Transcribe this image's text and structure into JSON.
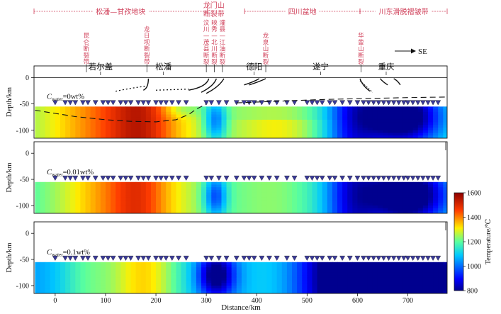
{
  "provinces": [
    {
      "label": "松潘—甘孜地块",
      "x0": -42,
      "x1": 302
    },
    {
      "label": "四川盆地",
      "x0": 376,
      "x1": 605
    },
    {
      "label": "川东滑脱褶皱带",
      "x0": 605,
      "x1": 778
    }
  ],
  "longmen_label": [
    "龙门山",
    "断裂带"
  ],
  "faults": [
    {
      "name": "昆仑断裂带",
      "x": 62
    },
    {
      "name": "龙日坝断裂带",
      "x": 182
    },
    {
      "name": "汶川—茂县断裂",
      "x": 300
    },
    {
      "name": "映秀—北川断裂",
      "x": 316
    },
    {
      "name": "灌县—江油断裂",
      "x": 332
    },
    {
      "name": "龙泉山断裂",
      "x": 418
    },
    {
      "name": "华蓥山断裂",
      "x": 607
    }
  ],
  "cities": [
    {
      "name": "若尔盖",
      "x": 90
    },
    {
      "name": "松潘",
      "x": 215
    },
    {
      "name": "德阳",
      "x": 395
    },
    {
      "name": "遂宁",
      "x": 527
    },
    {
      "name": "重庆",
      "x": 657
    }
  ],
  "direction_label": "SE",
  "x_axis": {
    "label": "Distance/km",
    "ticks": [
      0,
      100,
      200,
      300,
      400,
      500,
      600,
      700
    ],
    "range": [
      -42,
      778
    ]
  },
  "y_axis": {
    "label": "Depth/km",
    "ticks": [
      0,
      -50,
      -100
    ],
    "range": [
      -115,
      22
    ]
  },
  "panels": [
    {
      "id": "p1",
      "cwater_symbol": "C",
      "cwater_sub": "water",
      "cwater_value": "=0wt%",
      "scenario": "dry"
    },
    {
      "id": "p2",
      "cwater_symbol": "C",
      "cwater_sub": "water",
      "cwater_value": "=0.01wt%",
      "scenario": "mid"
    },
    {
      "id": "p3",
      "cwater_symbol": "C",
      "cwater_sub": "water",
      "cwater_value": "=0.1wt%",
      "scenario": "wet"
    }
  ],
  "stations_km": [
    0,
    20,
    30,
    40,
    55,
    65,
    80,
    95,
    105,
    115,
    130,
    140,
    150,
    165,
    175,
    185,
    200,
    210,
    220,
    232,
    245,
    260,
    300,
    310,
    325,
    340,
    360,
    375,
    385,
    395,
    410,
    425,
    440,
    460,
    475,
    500,
    510,
    520,
    530,
    545,
    555,
    570,
    585,
    600,
    612,
    622,
    632,
    642,
    652,
    662,
    672,
    682,
    692,
    700,
    710,
    720,
    730,
    740,
    750,
    760
  ],
  "colorbar": {
    "label": "Temperature/℃",
    "ticks": [
      800,
      1000,
      1200,
      1400,
      1600
    ],
    "min": 800,
    "max": 1600
  },
  "colors": {
    "province_line": "#d0405a",
    "station": "#3a3a9a"
  }
}
